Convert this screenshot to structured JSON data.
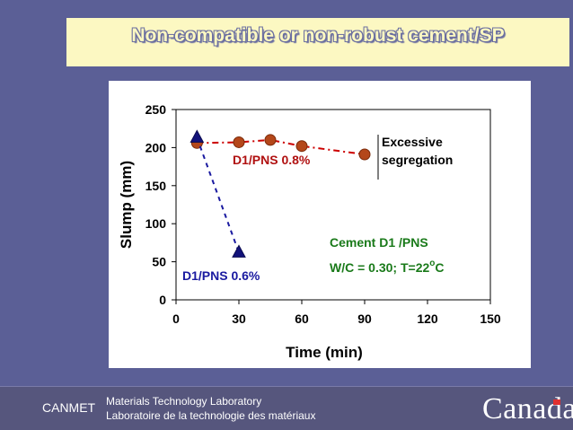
{
  "slide_title": "Non-compatible or non-robust cement/SP",
  "chart_data": {
    "type": "line",
    "title": "",
    "xlabel": "Time (min)",
    "ylabel": "Slump (mm)",
    "xlim": [
      0,
      150
    ],
    "ylim": [
      0,
      250
    ],
    "xticks": [
      0,
      30,
      60,
      90,
      120,
      150
    ],
    "yticks": [
      0,
      50,
      100,
      150,
      200,
      250
    ],
    "series": [
      {
        "name": "D1/PNS 0.8%",
        "color": "#cc0000",
        "marker": "circle",
        "x": [
          10,
          30,
          45,
          60,
          90
        ],
        "y": [
          206,
          207,
          210,
          202,
          191
        ]
      },
      {
        "name": "D1/PNS 0.6%",
        "color": "#1a1aa0",
        "marker": "triangle",
        "x": [
          10,
          30
        ],
        "y": [
          213,
          62
        ]
      }
    ],
    "annotations": {
      "excessive_line1": "Excessive",
      "excessive_line2": "segregation",
      "cement": "Cement D1 /PNS",
      "conditions_prefix": "W/C = 0.30; T=22",
      "degree": "o",
      "conditions_unit": "C"
    }
  },
  "footer": {
    "org": "CANMET",
    "lab_en": "Materials Technology Laboratory",
    "lab_fr": "Laboratoire de la technologie des matériaux",
    "wordmark": "Canada"
  }
}
